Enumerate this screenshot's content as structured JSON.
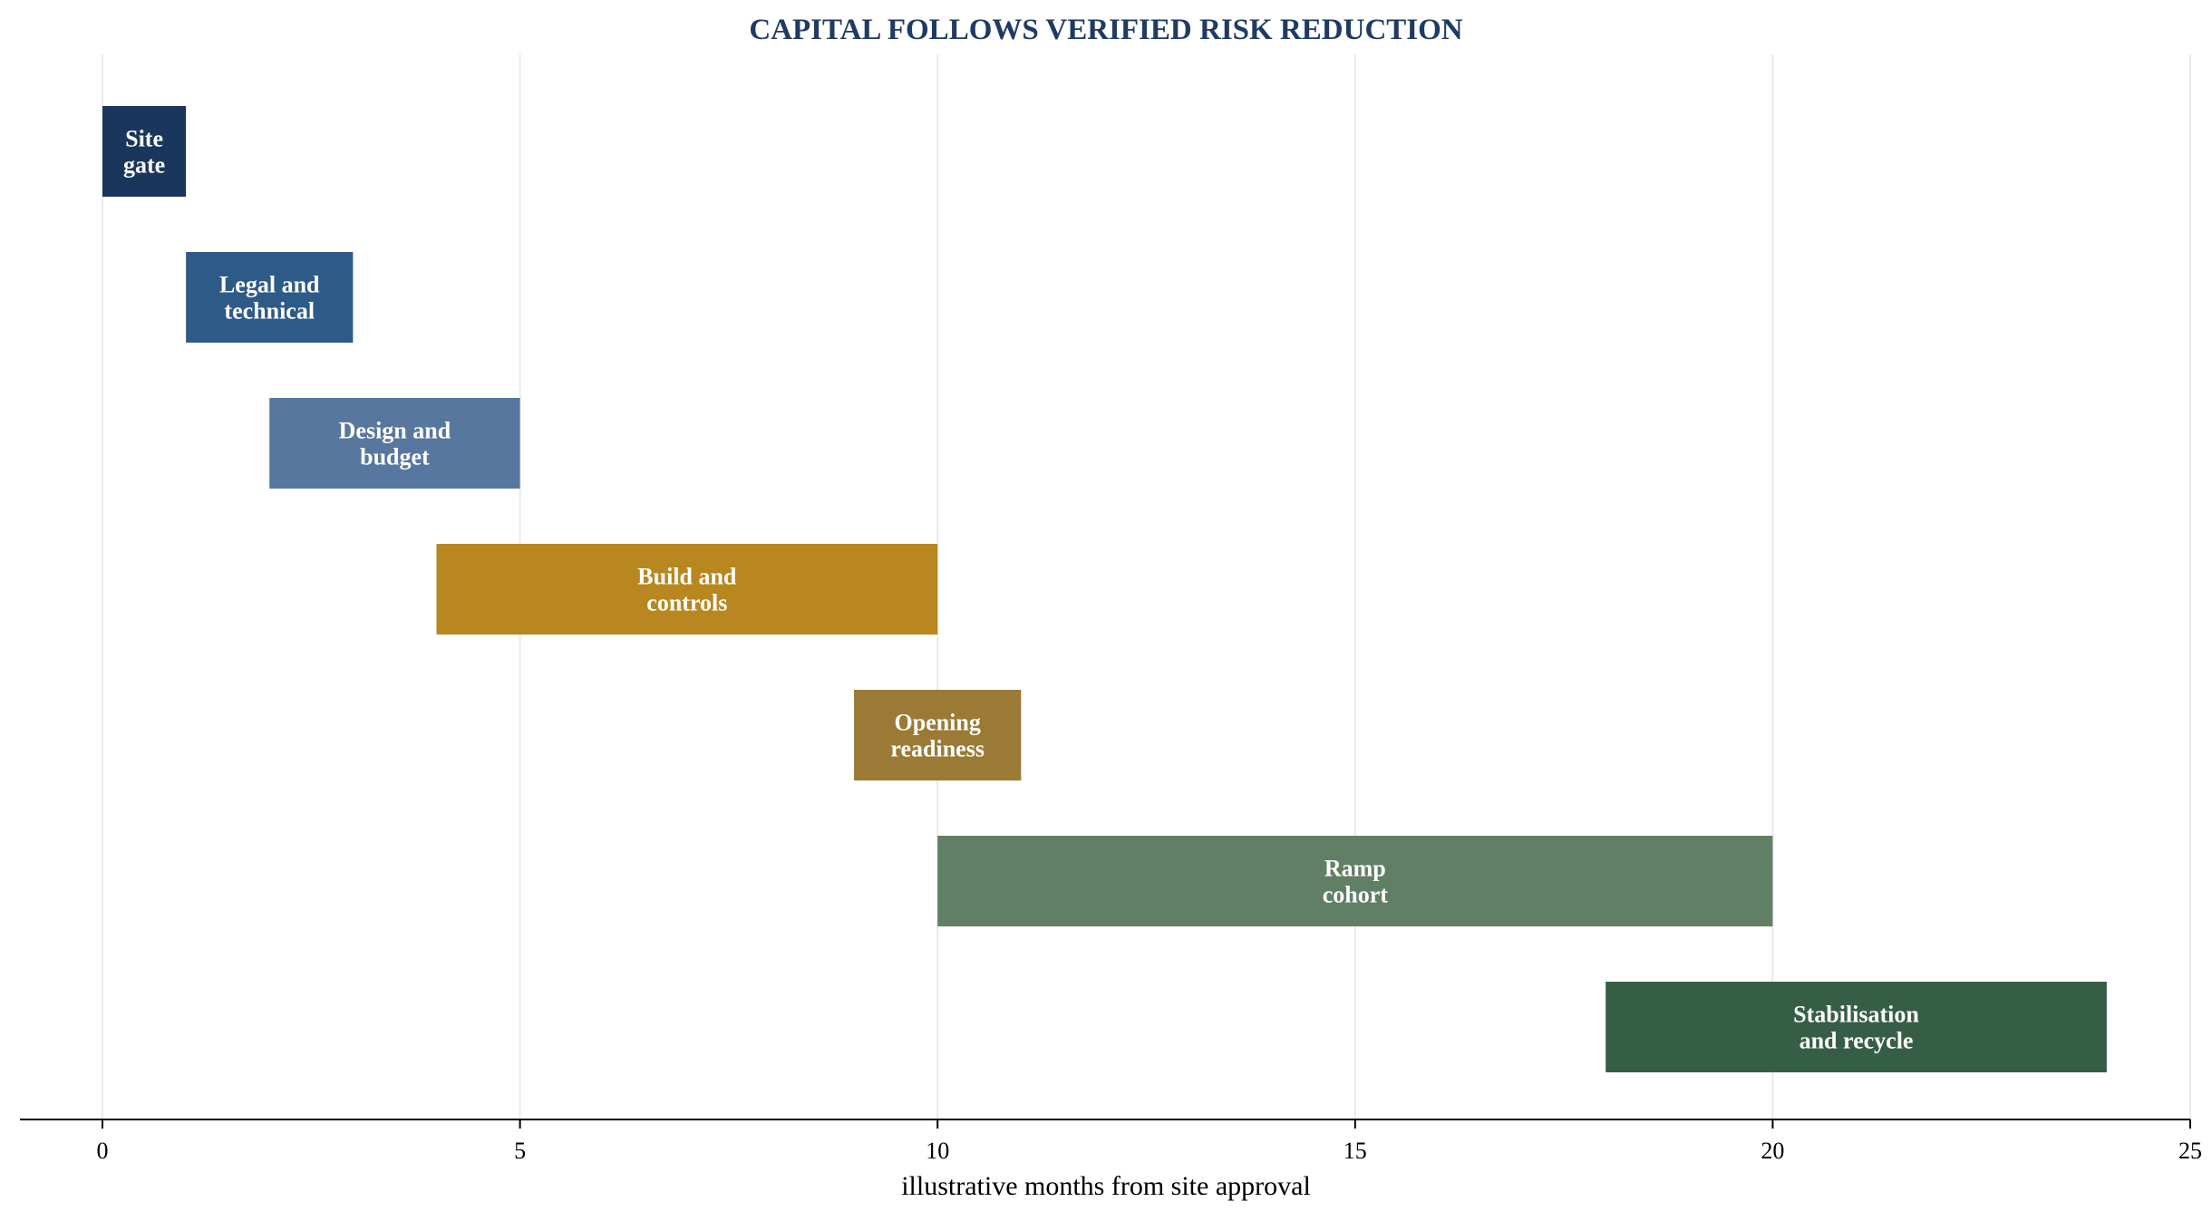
{
  "chart_data": {
    "type": "gantt",
    "title": "CAPITAL FOLLOWS VERIFIED RISK REDUCTION",
    "xlabel": "illustrative months from site approval",
    "ylabel": "",
    "xlim": [
      0,
      25
    ],
    "xticks": [
      0,
      5,
      10,
      15,
      20,
      25
    ],
    "grid": "vertical",
    "title_color": "#1f3b63",
    "tasks": [
      {
        "label_lines": [
          "Site",
          "gate"
        ],
        "start": 0,
        "end": 1,
        "color": "#1b365d"
      },
      {
        "label_lines": [
          "Legal and",
          "technical"
        ],
        "start": 1,
        "end": 3,
        "color": "#2e5a87"
      },
      {
        "label_lines": [
          "Design and",
          "budget"
        ],
        "start": 2,
        "end": 5,
        "color": "#57779e"
      },
      {
        "label_lines": [
          "Build and",
          "controls"
        ],
        "start": 4,
        "end": 10,
        "color": "#b8871f"
      },
      {
        "label_lines": [
          "Opening",
          "readiness"
        ],
        "start": 9,
        "end": 11,
        "color": "#9a7a34"
      },
      {
        "label_lines": [
          "Ramp",
          "cohort"
        ],
        "start": 10,
        "end": 20,
        "color": "#607f65"
      },
      {
        "label_lines": [
          "Stabilisation",
          "and recycle"
        ],
        "start": 18,
        "end": 24,
        "color": "#365e47"
      }
    ]
  }
}
